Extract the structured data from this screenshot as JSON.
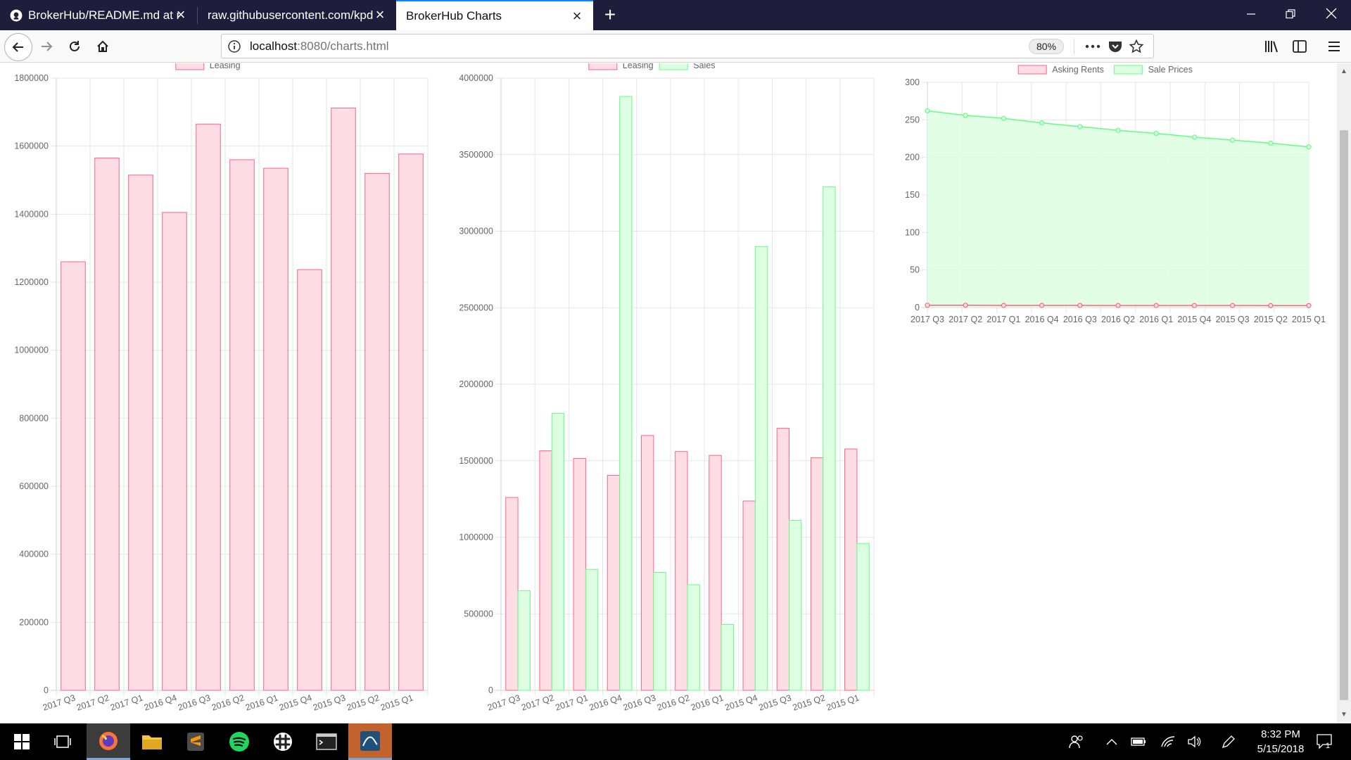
{
  "browser": {
    "tabs": [
      {
        "title": "BrokerHub/README.md at ma",
        "active": false
      },
      {
        "title": "raw.githubusercontent.com/kpdebr",
        "active": false
      },
      {
        "title": "BrokerHub Charts",
        "active": true
      }
    ],
    "url_host": "localhost",
    "url_rest": ":8080/charts.html",
    "zoom": "80%"
  },
  "colors": {
    "leasing_fill": "#ffdde4",
    "leasing_stroke": "#ff6384",
    "sales_fill": "#ddffe2",
    "sales_stroke": "#63ff84",
    "grid": "#e6e6e6",
    "tick_text": "#666666"
  },
  "taskbar": {
    "time": "8:32 PM",
    "date": "5/15/2018",
    "notification_count": "1"
  },
  "chart_data": [
    {
      "type": "bar",
      "categories": [
        "2017 Q3",
        "2017 Q2",
        "2017 Q1",
        "2016 Q4",
        "2016 Q3",
        "2016 Q2",
        "2016 Q1",
        "2015 Q4",
        "2015 Q3",
        "2015 Q2",
        "2015 Q1"
      ],
      "series": [
        {
          "name": "Leasing",
          "values": [
            1260000,
            1565000,
            1515000,
            1405000,
            1665000,
            1560000,
            1535000,
            1237000,
            1712000,
            1520000,
            1577000
          ]
        }
      ],
      "ylim": [
        0,
        1800000
      ],
      "yticks": [
        "0",
        "200000",
        "400000",
        "600000",
        "800000",
        "1000000",
        "1200000",
        "1400000",
        "1600000",
        "1800000"
      ],
      "legend": "top"
    },
    {
      "type": "bar",
      "categories": [
        "2017 Q3",
        "2017 Q2",
        "2017 Q1",
        "2016 Q4",
        "2016 Q3",
        "2016 Q2",
        "2016 Q1",
        "2015 Q4",
        "2015 Q3",
        "2015 Q2",
        "2015 Q1"
      ],
      "series": [
        {
          "name": "Leasing",
          "values": [
            1260000,
            1565000,
            1515000,
            1405000,
            1665000,
            1560000,
            1535000,
            1237000,
            1712000,
            1520000,
            1577000
          ]
        },
        {
          "name": "Sales",
          "values": [
            650000,
            1810000,
            790000,
            3880000,
            770000,
            690000,
            430000,
            2900000,
            1110000,
            3290000,
            960000
          ]
        }
      ],
      "ylim": [
        0,
        4000000
      ],
      "yticks": [
        "0",
        "500000",
        "1000000",
        "1500000",
        "2000000",
        "2500000",
        "3000000",
        "3500000",
        "4000000"
      ],
      "legend": "top"
    },
    {
      "type": "line",
      "fill": "area",
      "categories": [
        "2017 Q3",
        "2017 Q2",
        "2017 Q1",
        "2016 Q4",
        "2016 Q3",
        "2016 Q2",
        "2016 Q1",
        "2015 Q4",
        "2015 Q3",
        "2015 Q2",
        "2015 Q1"
      ],
      "series": [
        {
          "name": "Asking Rents",
          "values": [
            3.0,
            3.1,
            2.8,
            2.8,
            2.8,
            2.7,
            2.7,
            2.7,
            2.7,
            2.6,
            2.6
          ]
        },
        {
          "name": "Sale Prices",
          "values": [
            262,
            256,
            252,
            246,
            241,
            236,
            232,
            227,
            223,
            219,
            214
          ]
        }
      ],
      "ylim": [
        0,
        300
      ],
      "yticks": [
        "0",
        "50",
        "100",
        "150",
        "200",
        "250",
        "300"
      ],
      "legend": "top"
    }
  ]
}
